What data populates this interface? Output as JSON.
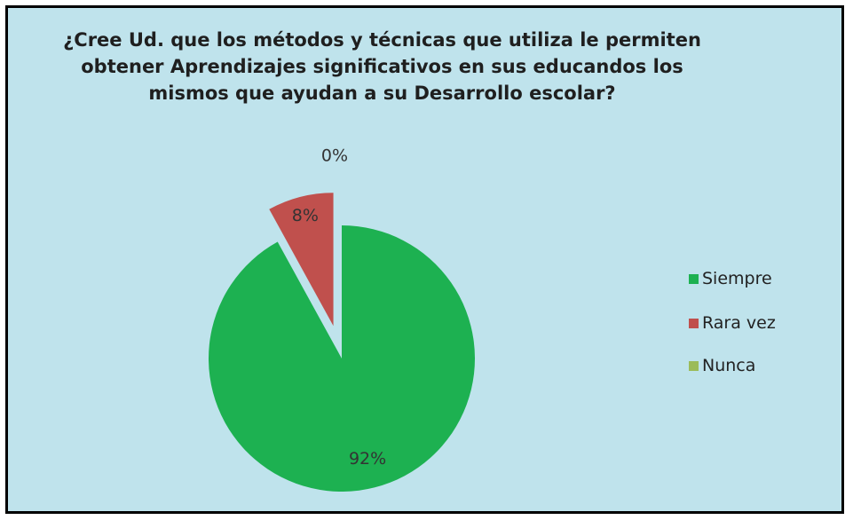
{
  "chart_data": {
    "type": "pie",
    "title_lines": [
      "¿Cree  Ud. que los métodos y técnicas que utiliza le permiten",
      "obtener Aprendizajes  significativos en sus educandos los",
      "mismos que ayudan a su  Desarrollo escolar?"
    ],
    "categories": [
      "Siempre",
      "Rara  vez",
      "Nunca"
    ],
    "values": [
      92,
      8,
      0
    ],
    "labels": [
      "92%",
      "8%",
      "0%"
    ],
    "colors": [
      "#1db151",
      "#c0504d",
      "#9bbb59"
    ],
    "legend_position": "right"
  }
}
